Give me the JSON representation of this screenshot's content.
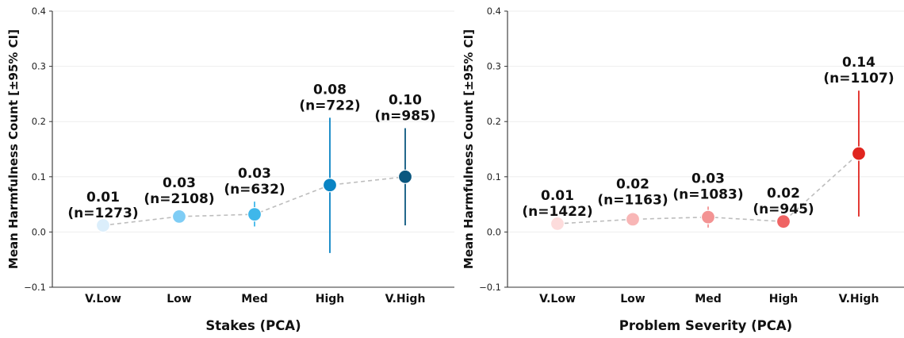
{
  "chart_data": [
    {
      "type": "line",
      "xlabel": "Stakes (PCA)",
      "ylabel": "Mean Harmfulness Count [±95% CI]",
      "ylim": [
        -0.1,
        0.4
      ],
      "yticks": [
        "−0.1",
        "0.0",
        "0.1",
        "0.2",
        "0.3",
        "0.4"
      ],
      "grid": "horizontal",
      "categories": [
        "V.Low",
        "Low",
        "Med",
        "High",
        "V.High"
      ],
      "values": [
        0.012,
        0.028,
        0.032,
        0.085,
        0.1
      ],
      "ci_low": [
        0.012,
        0.018,
        0.01,
        -0.038,
        0.012
      ],
      "ci_high": [
        0.012,
        0.038,
        0.055,
        0.207,
        0.188
      ],
      "value_labels": [
        "0.01",
        "0.03",
        "0.03",
        "0.08",
        "0.10"
      ],
      "n_labels": [
        "(n=1273)",
        "(n=2108)",
        "(n=632)",
        "(n=722)",
        "(n=985)"
      ],
      "colors": [
        "#dbeefb",
        "#7fcdf5",
        "#3fb7ea",
        "#0a84c4",
        "#0b577f"
      ],
      "line_color": "#bdbdbd"
    },
    {
      "type": "line",
      "xlabel": "Problem Severity (PCA)",
      "ylabel": "Mean Harmfulness Count [±95% CI]",
      "ylim": [
        -0.1,
        0.4
      ],
      "yticks": [
        "−0.1",
        "0.0",
        "0.1",
        "0.2",
        "0.3",
        "0.4"
      ],
      "grid": "horizontal",
      "categories": [
        "V.Low",
        "Low",
        "Med",
        "High",
        "V.High"
      ],
      "values": [
        0.015,
        0.023,
        0.027,
        0.019,
        0.142
      ],
      "ci_low": [
        0.015,
        0.01,
        0.008,
        0.019,
        0.028
      ],
      "ci_high": [
        0.015,
        0.036,
        0.046,
        0.019,
        0.256
      ],
      "value_labels": [
        "0.01",
        "0.02",
        "0.03",
        "0.02",
        "0.14"
      ],
      "n_labels": [
        "(n=1422)",
        "(n=1163)",
        "(n=1083)",
        "(n=945)",
        "(n=1107)"
      ],
      "colors": [
        "#fddcdc",
        "#f8b6b6",
        "#f39393",
        "#ef6464",
        "#e0251f"
      ],
      "line_color": "#bdbdbd"
    }
  ]
}
